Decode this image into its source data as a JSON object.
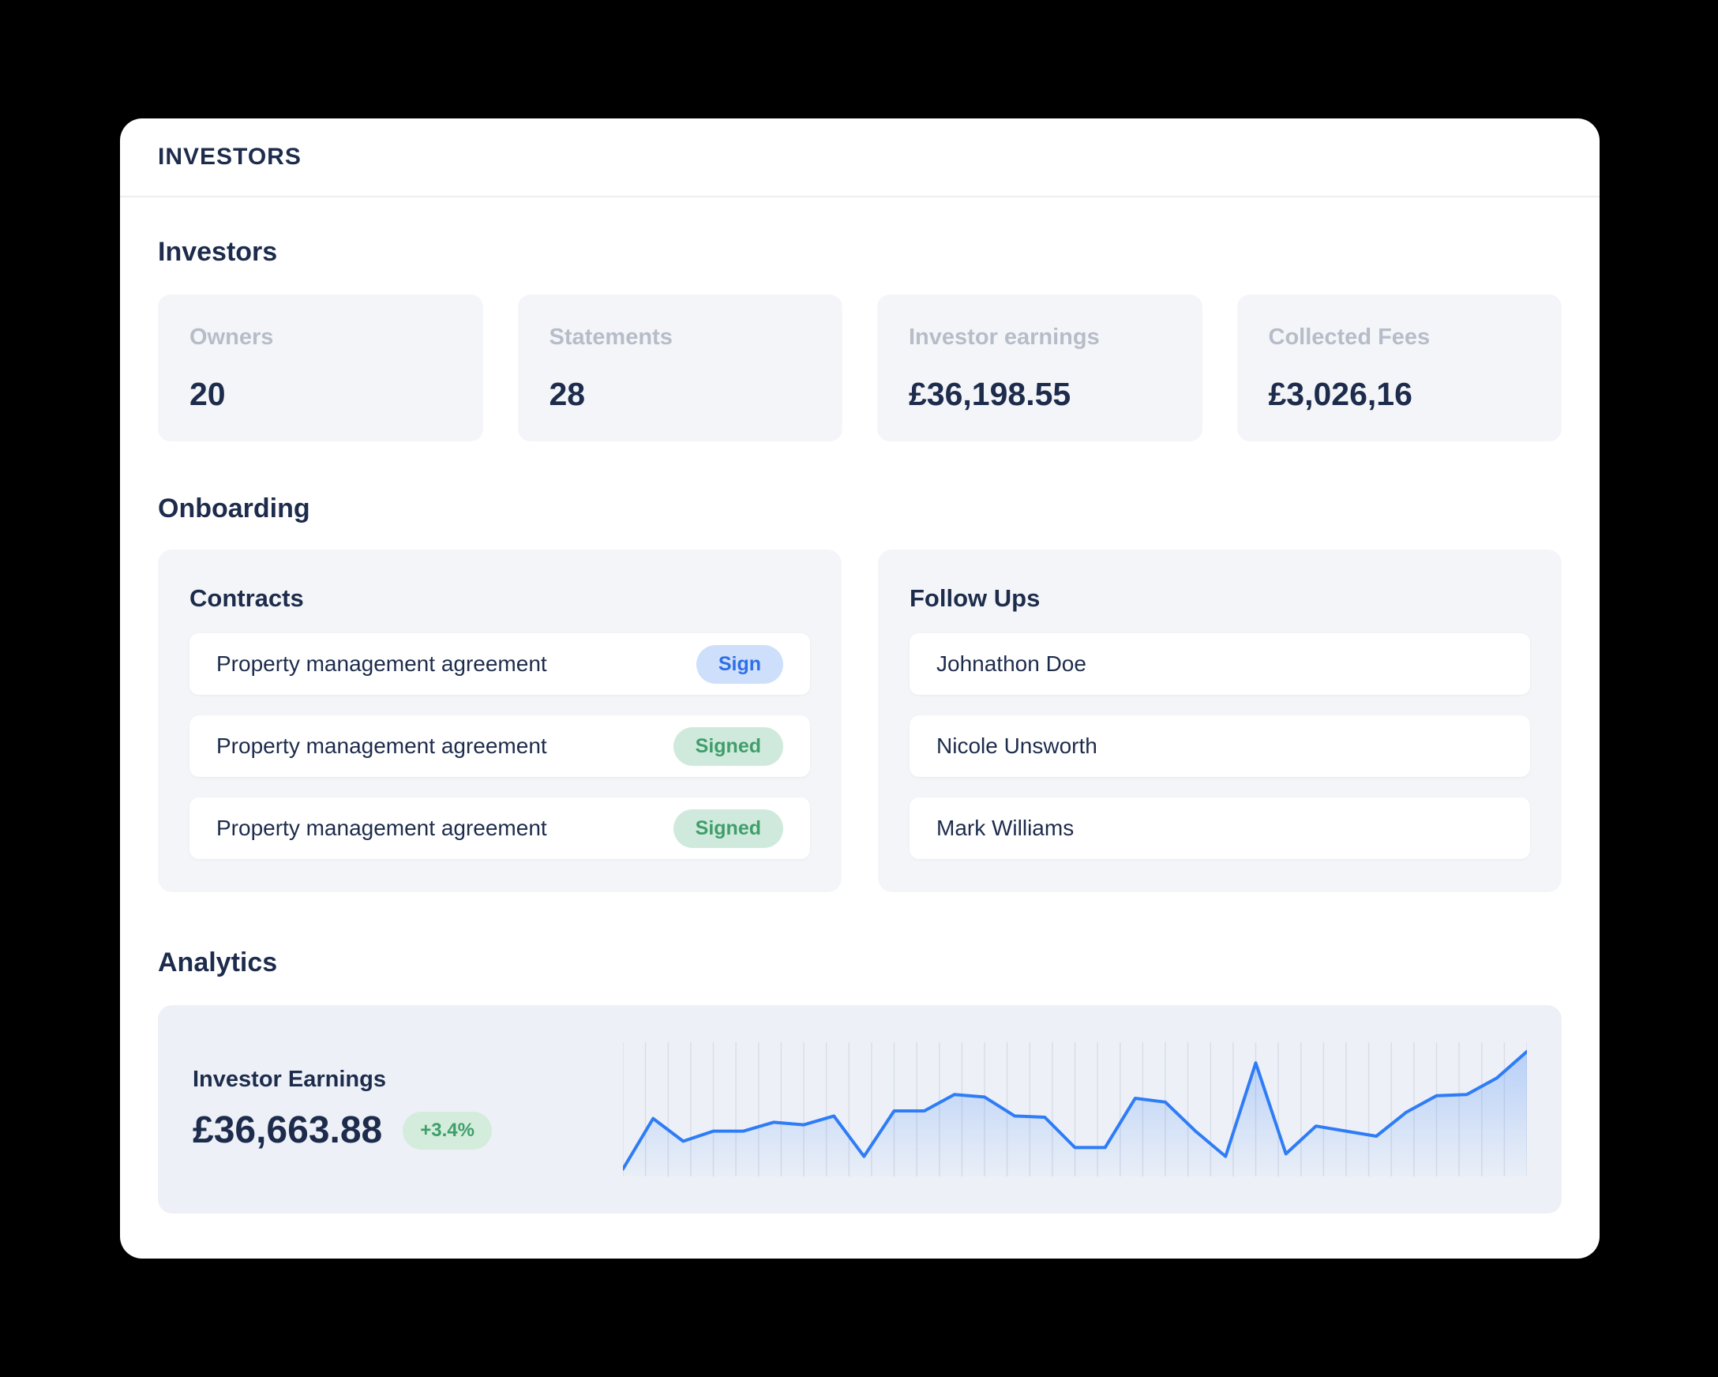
{
  "header": {
    "title": "INVESTORS"
  },
  "investors": {
    "title": "Investors",
    "stats": [
      {
        "label": "Owners",
        "value": "20"
      },
      {
        "label": "Statements",
        "value": "28"
      },
      {
        "label": "Investor earnings",
        "value": "£36,198.55"
      },
      {
        "label": "Collected Fees",
        "value": "£3,026,16"
      }
    ]
  },
  "onboarding": {
    "title": "Onboarding",
    "contracts": {
      "title": "Contracts",
      "items": [
        {
          "label": "Property management agreement",
          "status": "Sign",
          "status_type": "action"
        },
        {
          "label": "Property management agreement",
          "status": "Signed",
          "status_type": "done"
        },
        {
          "label": "Property management agreement",
          "status": "Signed",
          "status_type": "done"
        }
      ]
    },
    "follow_ups": {
      "title": "Follow Ups",
      "items": [
        {
          "name": "Johnathon Doe"
        },
        {
          "name": "Nicole Unsworth"
        },
        {
          "name": "Mark Williams"
        }
      ]
    }
  },
  "analytics": {
    "title": "Analytics",
    "earnings_label": "Investor Earnings",
    "earnings_value": "£36,663.88",
    "change": "+3.4%"
  },
  "chart_data": {
    "type": "line",
    "title": "Investor Earnings",
    "values": [
      4,
      44,
      26,
      34,
      34,
      41,
      39,
      46,
      14,
      50,
      50,
      63,
      61,
      46,
      45,
      21,
      21,
      60,
      57,
      34,
      14,
      88,
      16,
      38,
      34,
      30,
      49,
      62,
      63,
      76,
      97
    ],
    "ylim": [
      0,
      100
    ],
    "xlabel": "",
    "ylabel": "",
    "tick_labels": "none",
    "legend": "none",
    "grid": "vertical-only",
    "gridlines": 41,
    "grid_color": "#d8dde8",
    "line_color": "#2e7cf6",
    "area_fill_color": "#3b82f6"
  },
  "colors": {
    "background": "#000000",
    "card_bg": "#ffffff",
    "panel_bg": "#f4f5f8",
    "analytics_bg": "#edf1f7",
    "text_dark": "#1d2c4c",
    "text_muted": "#b6bdc9",
    "accent_blue": "#2e7cf6",
    "badge_blue_bg": "#cddffb",
    "badge_blue_text": "#2f6fe4",
    "badge_green_bg": "#cfeadd",
    "badge_green_text": "#3f9e6a"
  }
}
